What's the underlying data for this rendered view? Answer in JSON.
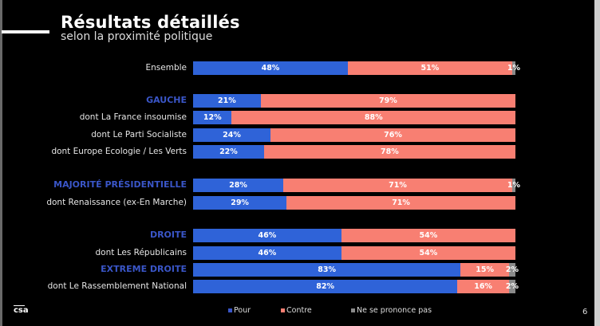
{
  "header": {
    "title": "Résultats détaillés",
    "subtitle": "selon la proximité politique"
  },
  "colors": {
    "pour": "#2f63d8",
    "contre": "#f87f72",
    "nsp": "#8a8a8a",
    "group_label": "#3a56c8"
  },
  "footer": {
    "logo": "csa",
    "page_number": "6"
  },
  "chart_data": {
    "type": "bar",
    "orientation": "horizontal-stacked-100",
    "title": "Résultats détaillés",
    "subtitle": "selon la proximité politique",
    "legend": [
      "Pour",
      "Contre",
      "Ne se prononce pas"
    ],
    "legend_position": "bottom",
    "categories": [
      "Ensemble",
      "GAUCHE",
      "dont La France insoumise",
      "dont Le Parti Socialiste",
      "dont Europe Ecologie / Les Verts",
      "MAJORITÉ PRÉSIDENTIELLE",
      "dont Renaissance (ex-En Marche)",
      "DROITE",
      "dont  Les Républicains",
      "EXTREME DROITE",
      "dont Le Rassemblement National"
    ],
    "is_group": [
      false,
      true,
      false,
      false,
      false,
      true,
      false,
      true,
      false,
      true,
      false
    ],
    "series": [
      {
        "name": "Pour",
        "values": [
          48,
          21,
          12,
          24,
          22,
          28,
          29,
          46,
          46,
          83,
          82
        ]
      },
      {
        "name": "Contre",
        "values": [
          51,
          79,
          88,
          76,
          78,
          71,
          71,
          54,
          54,
          15,
          16
        ]
      },
      {
        "name": "Ne se prononce pas",
        "values": [
          1,
          0,
          0,
          0,
          0,
          1,
          0,
          0,
          0,
          2,
          2
        ]
      }
    ],
    "value_labels": [
      [
        "48%",
        "51%",
        "1%"
      ],
      [
        "21%",
        "79%",
        ""
      ],
      [
        "12%",
        "88%",
        ""
      ],
      [
        "24%",
        "76%",
        ""
      ],
      [
        "22%",
        "78%",
        ""
      ],
      [
        "28%",
        "71%",
        "1%"
      ],
      [
        "29%",
        "71%",
        ""
      ],
      [
        "46%",
        "54%",
        ""
      ],
      [
        "46%",
        "54%",
        ""
      ],
      [
        "83%",
        "15%",
        "2%"
      ],
      [
        "82%",
        "16%",
        "2%"
      ]
    ],
    "xlim": [
      0,
      100
    ]
  }
}
